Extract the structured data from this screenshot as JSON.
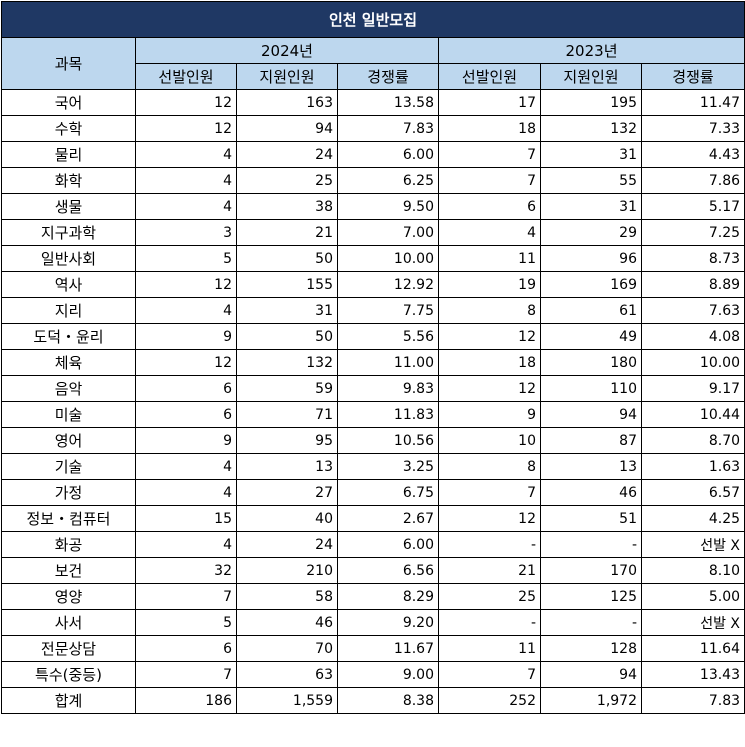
{
  "title": "인천 일반모집",
  "subject_header": "과목",
  "years": [
    "2024년",
    "2023년"
  ],
  "col_headers": [
    "선발인원",
    "지원인원",
    "경쟁률",
    "선발인원",
    "지원인원",
    "경쟁률"
  ],
  "rows": [
    [
      "국어",
      "12",
      "163",
      "13.58",
      "17",
      "195",
      "11.47"
    ],
    [
      "수학",
      "12",
      "94",
      "7.83",
      "18",
      "132",
      "7.33"
    ],
    [
      "물리",
      "4",
      "24",
      "6.00",
      "7",
      "31",
      "4.43"
    ],
    [
      "화학",
      "4",
      "25",
      "6.25",
      "7",
      "55",
      "7.86"
    ],
    [
      "생물",
      "4",
      "38",
      "9.50",
      "6",
      "31",
      "5.17"
    ],
    [
      "지구과학",
      "3",
      "21",
      "7.00",
      "4",
      "29",
      "7.25"
    ],
    [
      "일반사회",
      "5",
      "50",
      "10.00",
      "11",
      "96",
      "8.73"
    ],
    [
      "역사",
      "12",
      "155",
      "12.92",
      "19",
      "169",
      "8.89"
    ],
    [
      "지리",
      "4",
      "31",
      "7.75",
      "8",
      "61",
      "7.63"
    ],
    [
      "도덕・윤리",
      "9",
      "50",
      "5.56",
      "12",
      "49",
      "4.08"
    ],
    [
      "체육",
      "12",
      "132",
      "11.00",
      "18",
      "180",
      "10.00"
    ],
    [
      "음악",
      "6",
      "59",
      "9.83",
      "12",
      "110",
      "9.17"
    ],
    [
      "미술",
      "6",
      "71",
      "11.83",
      "9",
      "94",
      "10.44"
    ],
    [
      "영어",
      "9",
      "95",
      "10.56",
      "10",
      "87",
      "8.70"
    ],
    [
      "기술",
      "4",
      "13",
      "3.25",
      "8",
      "13",
      "1.63"
    ],
    [
      "가정",
      "4",
      "27",
      "6.75",
      "7",
      "46",
      "6.57"
    ],
    [
      "정보・컴퓨터",
      "15",
      "40",
      "2.67",
      "12",
      "51",
      "4.25"
    ],
    [
      "화공",
      "4",
      "24",
      "6.00",
      "-",
      "-",
      "선발 X"
    ],
    [
      "보건",
      "32",
      "210",
      "6.56",
      "21",
      "170",
      "8.10"
    ],
    [
      "영양",
      "7",
      "58",
      "8.29",
      "25",
      "125",
      "5.00"
    ],
    [
      "사서",
      "5",
      "46",
      "9.20",
      "-",
      "-",
      "선발 X"
    ],
    [
      "전문상담",
      "6",
      "70",
      "11.67",
      "11",
      "128",
      "11.64"
    ],
    [
      "특수(중등)",
      "7",
      "63",
      "9.00",
      "7",
      "94",
      "13.43"
    ],
    [
      "합계",
      "186",
      "1,559",
      "8.38",
      "252",
      "1,972",
      "7.83"
    ]
  ]
}
